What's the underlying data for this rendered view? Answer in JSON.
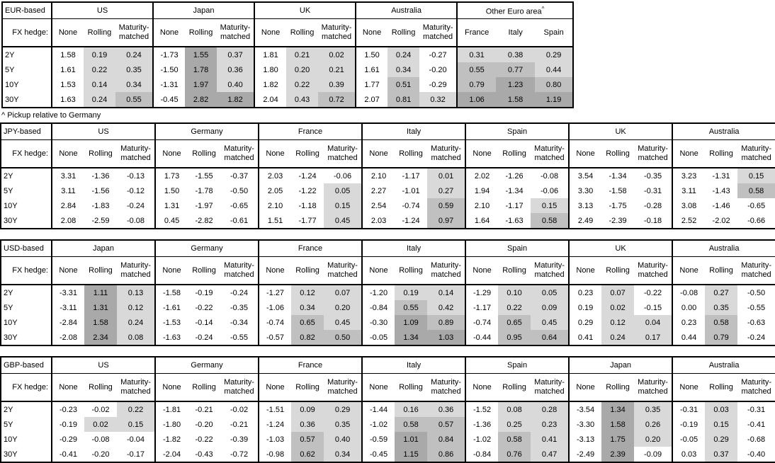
{
  "footnote": "^ Pickup relative to Germany",
  "fx_hedge_label": "FX hedge:",
  "tenors": [
    "2Y",
    "5Y",
    "10Y",
    "30Y"
  ],
  "hedge_columns": [
    "None",
    "Rolling",
    "Maturity-matched"
  ],
  "colors": {
    "shade_light": "#d9d9d9",
    "shade_medium": "#c0c0c0",
    "shade_dark": "#a9a9a9",
    "border": "#000000",
    "background": "#ffffff"
  },
  "shading_rule": {
    "applies_to": "hedged columns only (Rolling, Maturity-matched, and all Other-Euro-area spread columns)",
    "light_min": 0,
    "medium_min": 0.5,
    "dark_min": 1.0
  },
  "layout": {
    "label_col_width": 72,
    "group_col_widths": [
      46,
      46,
      54
    ],
    "t1_group_col_widths": [
      45,
      45,
      53
    ],
    "t1_euro_col_widths": [
      55,
      55,
      54
    ]
  },
  "tables": [
    {
      "id": "EUR-based",
      "label": "EUR-based",
      "groups": [
        {
          "name": "US",
          "rows": [
            [
              "1.58",
              "0.19",
              "0.24"
            ],
            [
              "1.61",
              "0.22",
              "0.35"
            ],
            [
              "1.53",
              "0.14",
              "0.34"
            ],
            [
              "1.63",
              "0.24",
              "0.55"
            ]
          ]
        },
        {
          "name": "Japan",
          "rows": [
            [
              "-1.73",
              "1.55",
              "0.37"
            ],
            [
              "-1.50",
              "1.78",
              "0.36"
            ],
            [
              "-1.31",
              "1.97",
              "0.40"
            ],
            [
              "-0.45",
              "2.82",
              "1.82"
            ]
          ]
        },
        {
          "name": "UK",
          "rows": [
            [
              "1.81",
              "0.21",
              "0.02"
            ],
            [
              "1.80",
              "0.20",
              "0.21"
            ],
            [
              "1.82",
              "0.22",
              "0.39"
            ],
            [
              "2.04",
              "0.43",
              "0.72"
            ]
          ]
        },
        {
          "name": "Australia",
          "rows": [
            [
              "1.50",
              "0.24",
              "-0.27"
            ],
            [
              "1.61",
              "0.34",
              "-0.20"
            ],
            [
              "1.77",
              "0.51",
              "-0.29"
            ],
            [
              "2.07",
              "0.81",
              "0.32"
            ]
          ]
        },
        {
          "name": "Other Euro area",
          "sup": "^",
          "cols": [
            "France",
            "Italy",
            "Spain"
          ],
          "shade_all": true,
          "rows": [
            [
              "0.31",
              "0.38",
              "0.29"
            ],
            [
              "0.55",
              "0.77",
              "0.44"
            ],
            [
              "0.79",
              "1.23",
              "0.80"
            ],
            [
              "1.06",
              "1.58",
              "1.19"
            ]
          ]
        }
      ]
    },
    {
      "id": "JPY-based",
      "label": "JPY-based",
      "groups": [
        {
          "name": "US",
          "rows": [
            [
              "3.31",
              "-1.36",
              "-0.13"
            ],
            [
              "3.11",
              "-1.56",
              "-0.12"
            ],
            [
              "2.84",
              "-1.83",
              "-0.24"
            ],
            [
              "2.08",
              "-2.59",
              "-0.08"
            ]
          ]
        },
        {
          "name": "Germany",
          "rows": [
            [
              "1.73",
              "-1.55",
              "-0.37"
            ],
            [
              "1.50",
              "-1.78",
              "-0.50"
            ],
            [
              "1.31",
              "-1.97",
              "-0.65"
            ],
            [
              "0.45",
              "-2.82",
              "-0.61"
            ]
          ]
        },
        {
          "name": "France",
          "rows": [
            [
              "2.03",
              "-1.24",
              "-0.06"
            ],
            [
              "2.05",
              "-1.22",
              "0.05"
            ],
            [
              "2.10",
              "-1.18",
              "0.15"
            ],
            [
              "1.51",
              "-1.77",
              "0.45"
            ]
          ]
        },
        {
          "name": "Italy",
          "rows": [
            [
              "2.10",
              "-1.17",
              "0.01"
            ],
            [
              "2.27",
              "-1.01",
              "0.27"
            ],
            [
              "2.54",
              "-0.74",
              "0.59"
            ],
            [
              "2.03",
              "-1.24",
              "0.97"
            ]
          ]
        },
        {
          "name": "Spain",
          "rows": [
            [
              "2.02",
              "-1.26",
              "-0.08"
            ],
            [
              "1.94",
              "-1.34",
              "-0.06"
            ],
            [
              "2.10",
              "-1.17",
              "0.15"
            ],
            [
              "1.64",
              "-1.63",
              "0.58"
            ]
          ]
        },
        {
          "name": "UK",
          "rows": [
            [
              "3.54",
              "-1.34",
              "-0.35"
            ],
            [
              "3.30",
              "-1.58",
              "-0.31"
            ],
            [
              "3.13",
              "-1.75",
              "-0.28"
            ],
            [
              "2.49",
              "-2.39",
              "-0.18"
            ]
          ]
        },
        {
          "name": "Australia",
          "rows": [
            [
              "3.23",
              "-1.31",
              "0.15"
            ],
            [
              "3.11",
              "-1.43",
              "0.58"
            ],
            [
              "3.08",
              "-1.46",
              "-0.65"
            ],
            [
              "2.52",
              "-2.02",
              "-0.66"
            ]
          ]
        }
      ]
    },
    {
      "id": "USD-based",
      "label": "USD-based",
      "groups": [
        {
          "name": "Japan",
          "rows": [
            [
              "-3.31",
              "1.11",
              "0.13"
            ],
            [
              "-3.11",
              "1.31",
              "0.12"
            ],
            [
              "-2.84",
              "1.58",
              "0.24"
            ],
            [
              "-2.08",
              "2.34",
              "0.08"
            ]
          ]
        },
        {
          "name": "Germany",
          "rows": [
            [
              "-1.58",
              "-0.19",
              "-0.24"
            ],
            [
              "-1.61",
              "-0.22",
              "-0.35"
            ],
            [
              "-1.53",
              "-0.14",
              "-0.34"
            ],
            [
              "-1.63",
              "-0.24",
              "-0.55"
            ]
          ]
        },
        {
          "name": "France",
          "rows": [
            [
              "-1.27",
              "0.12",
              "0.07"
            ],
            [
              "-1.06",
              "0.34",
              "0.20"
            ],
            [
              "-0.74",
              "0.65",
              "0.45"
            ],
            [
              "-0.57",
              "0.82",
              "0.50"
            ]
          ]
        },
        {
          "name": "Italy",
          "rows": [
            [
              "-1.20",
              "0.19",
              "0.14"
            ],
            [
              "-0.84",
              "0.55",
              "0.42"
            ],
            [
              "-0.30",
              "1.09",
              "0.89"
            ],
            [
              "-0.05",
              "1.34",
              "1.03"
            ]
          ]
        },
        {
          "name": "Spain",
          "rows": [
            [
              "-1.29",
              "0.10",
              "0.05"
            ],
            [
              "-1.17",
              "0.22",
              "0.09"
            ],
            [
              "-0.74",
              "0.65",
              "0.45"
            ],
            [
              "-0.44",
              "0.95",
              "0.64"
            ]
          ]
        },
        {
          "name": "UK",
          "rows": [
            [
              "0.23",
              "0.07",
              "-0.22"
            ],
            [
              "0.19",
              "0.02",
              "-0.15"
            ],
            [
              "0.29",
              "0.12",
              "0.04"
            ],
            [
              "0.41",
              "0.24",
              "0.17"
            ]
          ]
        },
        {
          "name": "Australia",
          "rows": [
            [
              "-0.08",
              "0.27",
              "-0.50"
            ],
            [
              "0.00",
              "0.35",
              "-0.55"
            ],
            [
              "0.23",
              "0.58",
              "-0.63"
            ],
            [
              "0.44",
              "0.79",
              "-0.24"
            ]
          ]
        }
      ]
    },
    {
      "id": "GBP-based",
      "label": "GBP-based",
      "groups": [
        {
          "name": "US",
          "rows": [
            [
              "-0.23",
              "-0.02",
              "0.22"
            ],
            [
              "-0.19",
              "0.02",
              "0.15"
            ],
            [
              "-0.29",
              "-0.08",
              "-0.04"
            ],
            [
              "-0.41",
              "-0.20",
              "-0.17"
            ]
          ]
        },
        {
          "name": "Germany",
          "rows": [
            [
              "-1.81",
              "-0.21",
              "-0.02"
            ],
            [
              "-1.80",
              "-0.20",
              "-0.21"
            ],
            [
              "-1.82",
              "-0.22",
              "-0.39"
            ],
            [
              "-2.04",
              "-0.43",
              "-0.72"
            ]
          ]
        },
        {
          "name": "France",
          "rows": [
            [
              "-1.51",
              "0.09",
              "0.29"
            ],
            [
              "-1.24",
              "0.36",
              "0.35"
            ],
            [
              "-1.03",
              "0.57",
              "0.40"
            ],
            [
              "-0.98",
              "0.62",
              "0.34"
            ]
          ]
        },
        {
          "name": "Italy",
          "rows": [
            [
              "-1.44",
              "0.16",
              "0.36"
            ],
            [
              "-1.02",
              "0.58",
              "0.57"
            ],
            [
              "-0.59",
              "1.01",
              "0.84"
            ],
            [
              "-0.45",
              "1.15",
              "0.86"
            ]
          ]
        },
        {
          "name": "Spain",
          "rows": [
            [
              "-1.52",
              "0.08",
              "0.28"
            ],
            [
              "-1.36",
              "0.25",
              "0.23"
            ],
            [
              "-1.02",
              "0.58",
              "0.41"
            ],
            [
              "-0.84",
              "0.76",
              "0.47"
            ]
          ]
        },
        {
          "name": "Japan",
          "rows": [
            [
              "-3.54",
              "1.34",
              "0.35"
            ],
            [
              "-3.30",
              "1.58",
              "0.26"
            ],
            [
              "-3.13",
              "1.75",
              "0.20"
            ],
            [
              "-2.49",
              "2.39",
              "-0.09"
            ]
          ]
        },
        {
          "name": "Australia",
          "rows": [
            [
              "-0.31",
              "0.03",
              "-0.31"
            ],
            [
              "-0.19",
              "0.15",
              "-0.41"
            ],
            [
              "-0.05",
              "0.29",
              "-0.68"
            ],
            [
              "0.03",
              "0.37",
              "-0.40"
            ]
          ]
        }
      ]
    }
  ]
}
